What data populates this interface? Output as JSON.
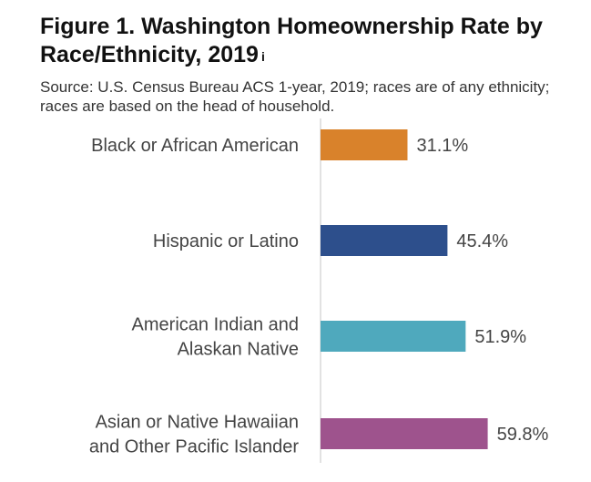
{
  "title": "Figure 1. Washington Homeownership Rate by Race/Ethnicity, 2019",
  "title_note": "i",
  "source": "Source: U.S. Census Bureau ACS 1-year, 2019; races are of any ethnicity; races are based on the head of household.",
  "chart_data": {
    "type": "bar",
    "orientation": "horizontal",
    "title": "Figure 1. Washington Homeownership Rate by Race/Ethnicity, 2019",
    "categories": [
      [
        "Black or African American"
      ],
      [
        "Hispanic or Latino"
      ],
      [
        "American Indian and",
        "Alaskan Native"
      ],
      [
        "Asian or Native Hawaiian",
        "and Other Pacific Islander"
      ]
    ],
    "values": [
      31.1,
      45.4,
      51.9,
      59.8
    ],
    "value_labels": [
      "31.1%",
      "45.4%",
      "51.9%",
      "59.8%"
    ],
    "colors": [
      "#D9822B",
      "#2D4F8C",
      "#4FA9BD",
      "#9E538D"
    ],
    "unit": "%",
    "xlim": [
      0,
      60
    ],
    "grid": false,
    "legend": "none"
  }
}
